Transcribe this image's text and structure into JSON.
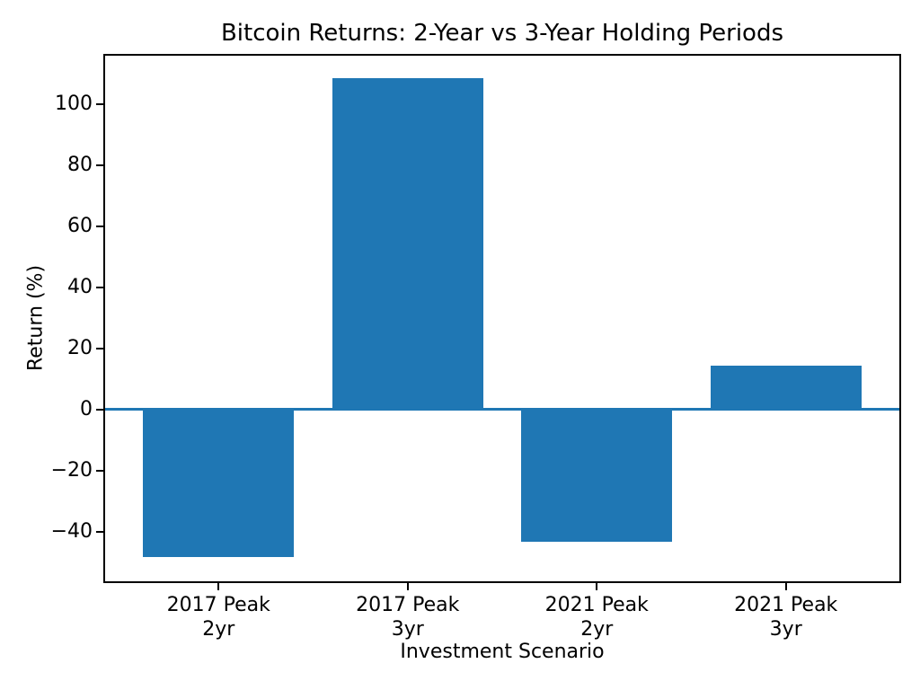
{
  "chart_data": {
    "type": "bar",
    "title": "Bitcoin Returns: 2-Year vs 3-Year Holding Periods",
    "xlabel": "Investment Scenario",
    "ylabel": "Return (%)",
    "categories": [
      "2017 Peak\n2yr",
      "2017 Peak\n3yr",
      "2021 Peak\n2yr",
      "2021 Peak\n3yr"
    ],
    "values": [
      -48.3,
      108.6,
      -43.3,
      14.4
    ],
    "yticks": [
      -40,
      -20,
      0,
      20,
      40,
      60,
      80,
      100
    ],
    "ylim": [
      -56.2,
      115.9
    ],
    "xlim": [
      -0.6,
      3.6
    ],
    "bar_width": 0.8,
    "grid": false,
    "legend": null,
    "zero_baseline": 0,
    "colors": {
      "bar": "#1f77b4",
      "zero_line": "#1f77b4",
      "axis": "#000000",
      "text": "#000000",
      "background": "#ffffff"
    }
  }
}
